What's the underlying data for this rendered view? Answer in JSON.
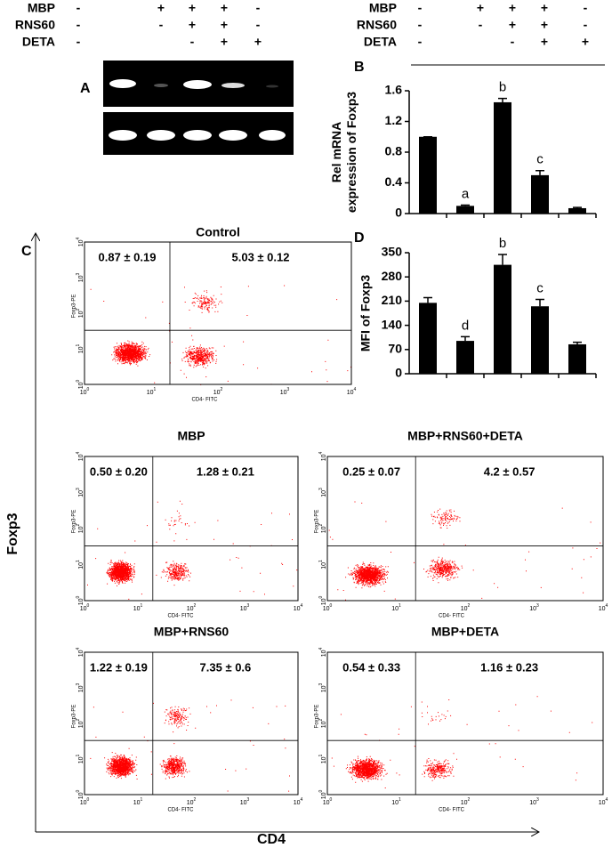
{
  "header_left": {
    "rows": [
      {
        "label": "MBP",
        "signs": [
          "-",
          "+",
          "+",
          "+",
          "-"
        ]
      },
      {
        "label": "RNS60",
        "signs": [
          "-",
          "-",
          "+",
          "+",
          "-"
        ]
      },
      {
        "label": "DETA",
        "signs": [
          "-",
          null,
          "-",
          "+",
          "+"
        ]
      }
    ]
  },
  "header_right": {
    "rows": [
      {
        "label": "MBP",
        "signs": [
          "-",
          "+",
          "+",
          "+",
          "-"
        ]
      },
      {
        "label": "RNS60",
        "signs": [
          "-",
          "-",
          "+",
          "+",
          "-"
        ]
      },
      {
        "label": "DETA",
        "signs": [
          "-",
          null,
          "-",
          "+",
          "+"
        ]
      }
    ]
  },
  "panel_labels": {
    "a": "A",
    "b": "B",
    "c": "C",
    "d": "D"
  },
  "chart_data": [
    {
      "type": "bar",
      "ylabel": [
        "Rel mRNA",
        "expression of Foxp3"
      ],
      "categories": [
        null,
        null,
        null,
        null,
        null
      ],
      "values": [
        1.0,
        0.1,
        1.45,
        0.5,
        0.07
      ],
      "errors": [
        0,
        0.01,
        0.05,
        0.06,
        0.01
      ],
      "annotations": [
        null,
        "a",
        "b",
        "c",
        null
      ],
      "color": "#000000",
      "ylim": [
        0,
        1.6
      ],
      "yticks": [
        0,
        0.4,
        0.8,
        1.2,
        1.6
      ]
    },
    {
      "type": "bar",
      "ylabel": [
        "MFI of Foxp3"
      ],
      "categories": [
        null,
        null,
        null,
        null,
        null
      ],
      "values": [
        205,
        95,
        315,
        195,
        85
      ],
      "errors": [
        15,
        12,
        30,
        20,
        6
      ],
      "annotations": [
        null,
        "d",
        "b",
        "c",
        null
      ],
      "color": "#000000",
      "ylim": [
        0,
        350
      ],
      "yticks": [
        0,
        70,
        140,
        210,
        280,
        350
      ]
    }
  ],
  "flow_axis": {
    "x_label": "CD4- FITC",
    "y_label": "Foxp3-PE",
    "ticks": [
      {
        "base": "10",
        "exp": "0"
      },
      {
        "base": "10",
        "exp": "1"
      },
      {
        "base": "10",
        "exp": "2"
      },
      {
        "base": "10",
        "exp": "3"
      },
      {
        "base": "10",
        "exp": "4"
      }
    ]
  },
  "flow_plots": [
    {
      "title": "Control",
      "q1": "0.87 ± 0.19",
      "q2": "5.03 ± 0.12"
    },
    {
      "title": "MBP",
      "q1": "0.50 ± 0.20",
      "q2": "1.28 ± 0.21"
    },
    {
      "title": "MBP+RNS60+DETA",
      "q1": "0.25 ± 0.07",
      "q2": "4.2 ± 0.57"
    },
    {
      "title": "MBP+RNS60",
      "q1": "1.22 ± 0.19",
      "q2": "7.35 ± 0.6"
    },
    {
      "title": "MBP+DETA",
      "q1": "0.54 ± 0.33",
      "q2": "1.16 ± 0.23"
    }
  ],
  "axis_labels": {
    "x": "CD4",
    "y": "Foxp3"
  }
}
